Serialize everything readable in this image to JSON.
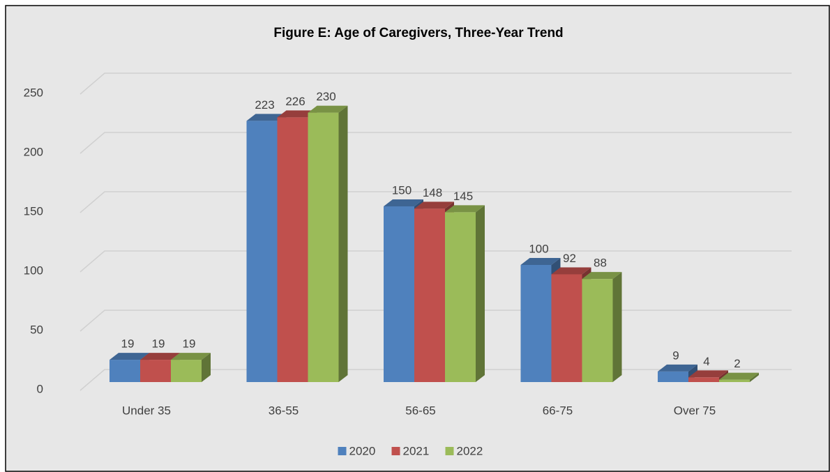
{
  "chart_data": {
    "type": "bar3d",
    "title": "Figure E: Age of Caregivers, Three-Year Trend",
    "categories": [
      "Under 35",
      "36-55",
      "56-65",
      "66-75",
      "Over 75"
    ],
    "series": [
      {
        "name": "2020",
        "color": "#4f81bd",
        "values": [
          19,
          223,
          150,
          100,
          9
        ]
      },
      {
        "name": "2021",
        "color": "#c0504d",
        "values": [
          19,
          226,
          148,
          92,
          4
        ]
      },
      {
        "name": "2022",
        "color": "#9bbb59",
        "values": [
          19,
          230,
          145,
          88,
          2
        ]
      }
    ],
    "ylim": [
      0,
      250
    ],
    "yticks": [
      0,
      50,
      100,
      150,
      200,
      250
    ],
    "grid": true,
    "legend": "bottom"
  }
}
